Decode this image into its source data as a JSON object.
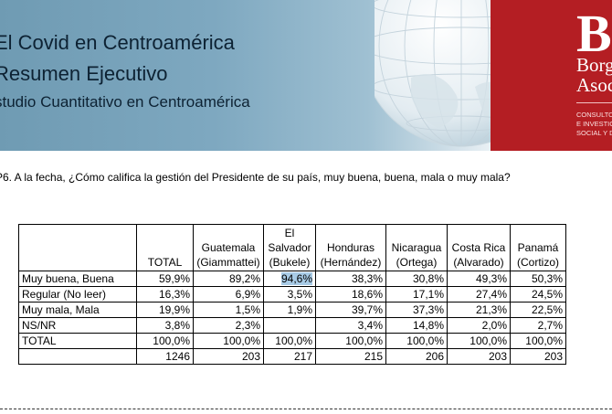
{
  "banner": {
    "title_line1": "El Covid en Centroamérica",
    "title_line2": "Resumen Ejecutivo",
    "subtitle": "studio Cuantitativo en Centroamérica"
  },
  "logo": {
    "mark": "B",
    "name_line1": "Borg",
    "name_line2": "Asoc",
    "tag_line1": "CONSULTO",
    "tag_line2": "E INVESTIG",
    "tag_line3": "SOCIAL Y D"
  },
  "question": "P6. A la fecha, ¿Cómo califica la gestión del Presidente de su país, muy buena, buena, mala o muy mala?",
  "table": {
    "headers": [
      {
        "line1": "",
        "line2": "",
        "line3": "TOTAL"
      },
      {
        "line1": "",
        "line2": "Guatemala",
        "line3": "(Giammattei)"
      },
      {
        "line1": "El",
        "line2": "Salvador",
        "line3": "(Bukele)"
      },
      {
        "line1": "",
        "line2": "Honduras",
        "line3": "(Hernández)"
      },
      {
        "line1": "",
        "line2": "Nicaragua",
        "line3": "(Ortega)"
      },
      {
        "line1": "",
        "line2": "Costa Rica",
        "line3": "(Alvarado)"
      },
      {
        "line1": "",
        "line2": "Panamá",
        "line3": "(Cortizo)"
      }
    ],
    "rows": [
      {
        "label": "Muy buena, Buena",
        "values": [
          "59,9%",
          "89,2%",
          "94,6%",
          "38,3%",
          "30,8%",
          "49,3%",
          "50,3%"
        ]
      },
      {
        "label": "Regular (No leer)",
        "values": [
          "16,3%",
          "6,9%",
          "3,5%",
          "18,6%",
          "17,1%",
          "27,4%",
          "24,5%"
        ]
      },
      {
        "label": "Muy mala, Mala",
        "values": [
          "19,9%",
          "1,5%",
          "1,9%",
          "39,7%",
          "37,3%",
          "21,3%",
          "22,5%"
        ]
      },
      {
        "label": "NS/NR",
        "values": [
          "3,8%",
          "2,3%",
          "",
          "3,4%",
          "14,8%",
          "2,0%",
          "2,7%"
        ]
      },
      {
        "label": "TOTAL",
        "values": [
          "100,0%",
          "100,0%",
          "100,0%",
          "100,0%",
          "100,0%",
          "100,0%",
          "100,0%"
        ]
      },
      {
        "label": "",
        "values": [
          "1246",
          "203",
          "217",
          "215",
          "206",
          "203",
          "203"
        ]
      }
    ],
    "highlight_color": "#a8cbe6"
  },
  "colors": {
    "banner_blue": "#7ea8c0",
    "brand_red": "#b41e23"
  }
}
